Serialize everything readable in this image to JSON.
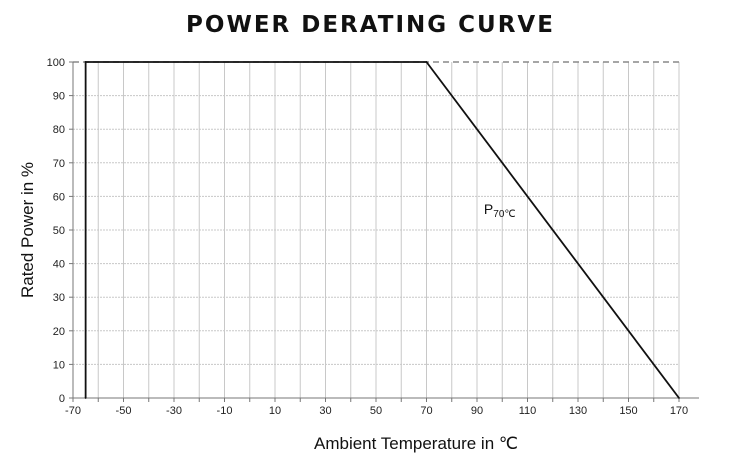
{
  "chart_data": {
    "type": "line",
    "title": "POWER DERATING CURVE",
    "xlabel": "Ambient Temperature  in ℃",
    "ylabel": "Rated Power in %",
    "xlim": [
      -70,
      170
    ],
    "ylim": [
      0,
      100
    ],
    "x_ticks": [
      "-70",
      "-50",
      "-30",
      "-10",
      "10",
      "30",
      "50",
      "70",
      "90",
      "110",
      "130",
      "150",
      "170"
    ],
    "y_ticks": [
      "0",
      "10",
      "20",
      "30",
      "40",
      "50",
      "60",
      "70",
      "80",
      "90",
      "100"
    ],
    "x_grid": [
      -70,
      -60,
      -50,
      -40,
      -30,
      -20,
      -10,
      0,
      10,
      20,
      30,
      40,
      50,
      60,
      70,
      80,
      90,
      100,
      110,
      120,
      130,
      140,
      150,
      160,
      170
    ],
    "grid": true,
    "series": [
      {
        "x": [
          -65,
          -65,
          70,
          170
        ],
        "y": [
          0,
          100,
          100,
          0
        ],
        "color": "#111111"
      }
    ],
    "reference_line": {
      "y": 100,
      "style": "dashed",
      "color": "#888888"
    },
    "annotations": [
      {
        "text": "P",
        "subscript": "70℃",
        "x": 107,
        "y": 56
      }
    ]
  }
}
